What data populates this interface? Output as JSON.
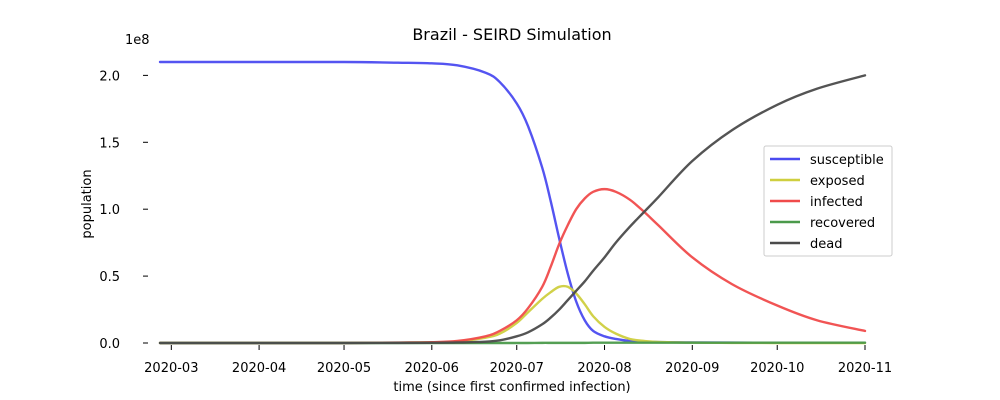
{
  "chart_data": {
    "type": "line",
    "title": "Brazil - SEIRD Simulation",
    "xlabel": "time (since first confirmed infection)",
    "ylabel": "population",
    "y_scale_label": "1e8",
    "y_scale_factor": 100000000,
    "xlim": [
      "2020-02-26",
      "2020-11-01"
    ],
    "ylim": [
      0,
      2.1
    ],
    "x_ticks": [
      {
        "date": "2020-03-01",
        "label": "2020-03"
      },
      {
        "date": "2020-04-01",
        "label": "2020-04"
      },
      {
        "date": "2020-05-01",
        "label": "2020-05"
      },
      {
        "date": "2020-06-01",
        "label": "2020-06"
      },
      {
        "date": "2020-07-01",
        "label": "2020-07"
      },
      {
        "date": "2020-08-01",
        "label": "2020-08"
      },
      {
        "date": "2020-09-01",
        "label": "2020-09"
      },
      {
        "date": "2020-10-01",
        "label": "2020-10"
      },
      {
        "date": "2020-11-01",
        "label": "2020-11"
      }
    ],
    "y_ticks": [
      {
        "value": 0.0,
        "label": "0.0"
      },
      {
        "value": 0.5,
        "label": "0.5"
      },
      {
        "value": 1.0,
        "label": "1.0"
      },
      {
        "value": 1.5,
        "label": "1.5"
      },
      {
        "value": 2.0,
        "label": "2.0"
      }
    ],
    "grid": false,
    "legend_position": "right",
    "x": [
      "2020-02-26",
      "2020-04-01",
      "2020-05-01",
      "2020-05-20",
      "2020-06-01",
      "2020-06-10",
      "2020-06-20",
      "2020-06-25",
      "2020-07-01",
      "2020-07-05",
      "2020-07-10",
      "2020-07-13",
      "2020-07-16",
      "2020-07-19",
      "2020-07-22",
      "2020-07-25",
      "2020-07-28",
      "2020-08-01",
      "2020-08-05",
      "2020-08-10",
      "2020-08-15",
      "2020-08-20",
      "2020-09-01",
      "2020-09-15",
      "2020-10-01",
      "2020-10-15",
      "2020-11-01"
    ],
    "series": [
      {
        "name": "susceptible",
        "color": "#4b4bf0",
        "values": [
          2.1,
          2.1,
          2.1,
          2.095,
          2.09,
          2.075,
          2.02,
          1.95,
          1.79,
          1.62,
          1.31,
          1.06,
          0.78,
          0.52,
          0.31,
          0.17,
          0.09,
          0.05,
          0.03,
          0.015,
          0.01,
          0.007,
          0.004,
          0.003,
          0.002,
          0.002,
          0.002
        ]
      },
      {
        "name": "exposed",
        "color": "#cfcf3f",
        "values": [
          0.0,
          0.0,
          0.0,
          0.002,
          0.005,
          0.012,
          0.04,
          0.07,
          0.15,
          0.23,
          0.33,
          0.38,
          0.42,
          0.42,
          0.37,
          0.29,
          0.2,
          0.12,
          0.07,
          0.03,
          0.015,
          0.008,
          0.003,
          0.001,
          0.0,
          0.0,
          0.0
        ]
      },
      {
        "name": "infected",
        "color": "#f04b4b",
        "values": [
          0.0,
          0.0,
          0.0,
          0.003,
          0.006,
          0.015,
          0.05,
          0.09,
          0.17,
          0.26,
          0.42,
          0.57,
          0.74,
          0.88,
          1.0,
          1.08,
          1.13,
          1.15,
          1.13,
          1.07,
          0.98,
          0.88,
          0.64,
          0.44,
          0.28,
          0.17,
          0.09
        ]
      },
      {
        "name": "recovered",
        "color": "#4b9a4b",
        "values": [
          0.0,
          0.0,
          0.0,
          0.0,
          0.0,
          0.0,
          0.0,
          0.0,
          0.0,
          0.0,
          0.001,
          0.001,
          0.001,
          0.001,
          0.001,
          0.001,
          0.002,
          0.002,
          0.002,
          0.002,
          0.002,
          0.002,
          0.002,
          0.002,
          0.002,
          0.002,
          0.002
        ]
      },
      {
        "name": "dead",
        "color": "#4b4b4b",
        "values": [
          0.0,
          0.0,
          0.0,
          0.001,
          0.002,
          0.004,
          0.01,
          0.02,
          0.05,
          0.08,
          0.14,
          0.19,
          0.25,
          0.32,
          0.39,
          0.46,
          0.54,
          0.64,
          0.75,
          0.87,
          0.98,
          1.09,
          1.36,
          1.59,
          1.78,
          1.9,
          2.0
        ]
      }
    ]
  }
}
